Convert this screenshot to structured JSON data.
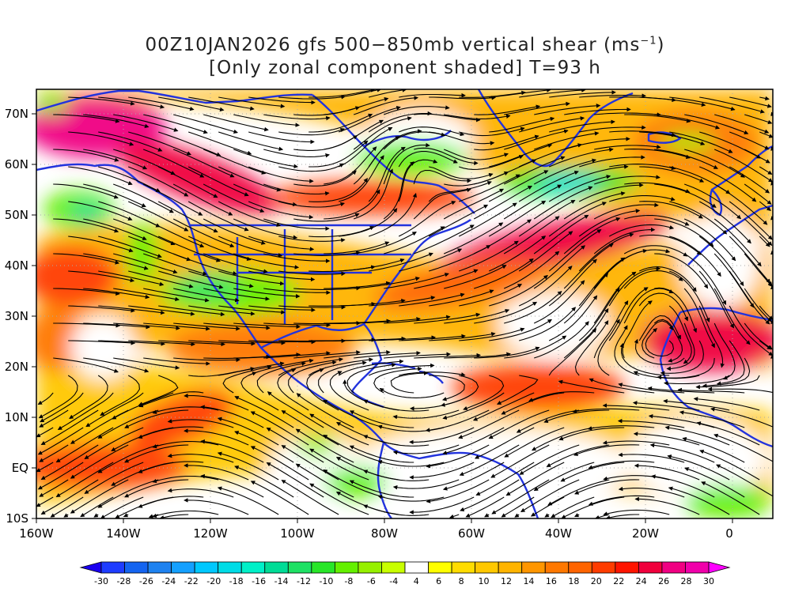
{
  "title": {
    "line1_prefix": "00Z10JAN2026 gfs 500−850mb vertical shear (ms",
    "line1_sup": "−1",
    "line1_suffix": ")",
    "line2": "[Only zonal component shaded] T=93 h"
  },
  "map": {
    "lon_range": [
      -160,
      10
    ],
    "lat_range": [
      -10,
      75
    ],
    "lat_labels": [
      "70N",
      "60N",
      "50N",
      "40N",
      "30N",
      "20N",
      "10N",
      "EQ",
      "10S"
    ],
    "lon_labels": [
      "160W",
      "140W",
      "120W",
      "100W",
      "80W",
      "60W",
      "40W",
      "20W",
      "0"
    ],
    "grid": true,
    "coastline_color": "#2233dd",
    "streamline_color": "#000000"
  },
  "colorbar": {
    "labels": [
      "-30",
      "-28",
      "-26",
      "-24",
      "-22",
      "-20",
      "-18",
      "-16",
      "-14",
      "-12",
      "-10",
      "-8",
      "-6",
      "-4",
      "4",
      "6",
      "8",
      "10",
      "12",
      "14",
      "16",
      "18",
      "20",
      "22",
      "24",
      "26",
      "28",
      "30"
    ],
    "colors": [
      "#1a00f0",
      "#1e3cff",
      "#1464f0",
      "#1e82f0",
      "#14a0ff",
      "#00c8ff",
      "#00dce6",
      "#00f0c8",
      "#00dc96",
      "#1ee164",
      "#28e628",
      "#64f000",
      "#96f000",
      "#c8ff00",
      "#ffffff",
      "#ffff00",
      "#ffdc00",
      "#ffc800",
      "#ffb400",
      "#ff9600",
      "#ff7800",
      "#ff6400",
      "#ff3c00",
      "#ff1400",
      "#f0003c",
      "#f00082",
      "#f000aa",
      "#ff00ff"
    ]
  },
  "shear_features": [
    {
      "lon": -140,
      "lat": 65,
      "value": 26
    },
    {
      "lon": -120,
      "lat": 55,
      "value": 28
    },
    {
      "lon": -95,
      "lat": 50,
      "value": 22
    },
    {
      "lon": -40,
      "lat": 44,
      "value": 24
    },
    {
      "lon": -55,
      "lat": 38,
      "value": 18
    },
    {
      "lon": -150,
      "lat": 38,
      "value": 20
    },
    {
      "lon": -145,
      "lat": 2,
      "value": 22
    },
    {
      "lon": -125,
      "lat": 10,
      "value": 20
    },
    {
      "lon": -100,
      "lat": 22,
      "value": 16
    },
    {
      "lon": -45,
      "lat": 14,
      "value": 20
    },
    {
      "lon": -10,
      "lat": 26,
      "value": 24
    },
    {
      "lon": -115,
      "lat": 36,
      "value": -10
    },
    {
      "lon": -75,
      "lat": 58,
      "value": -12
    },
    {
      "lon": -40,
      "lat": 58,
      "value": -18
    },
    {
      "lon": -148,
      "lat": 50,
      "value": -14
    },
    {
      "lon": -90,
      "lat": -3,
      "value": -8
    }
  ]
}
